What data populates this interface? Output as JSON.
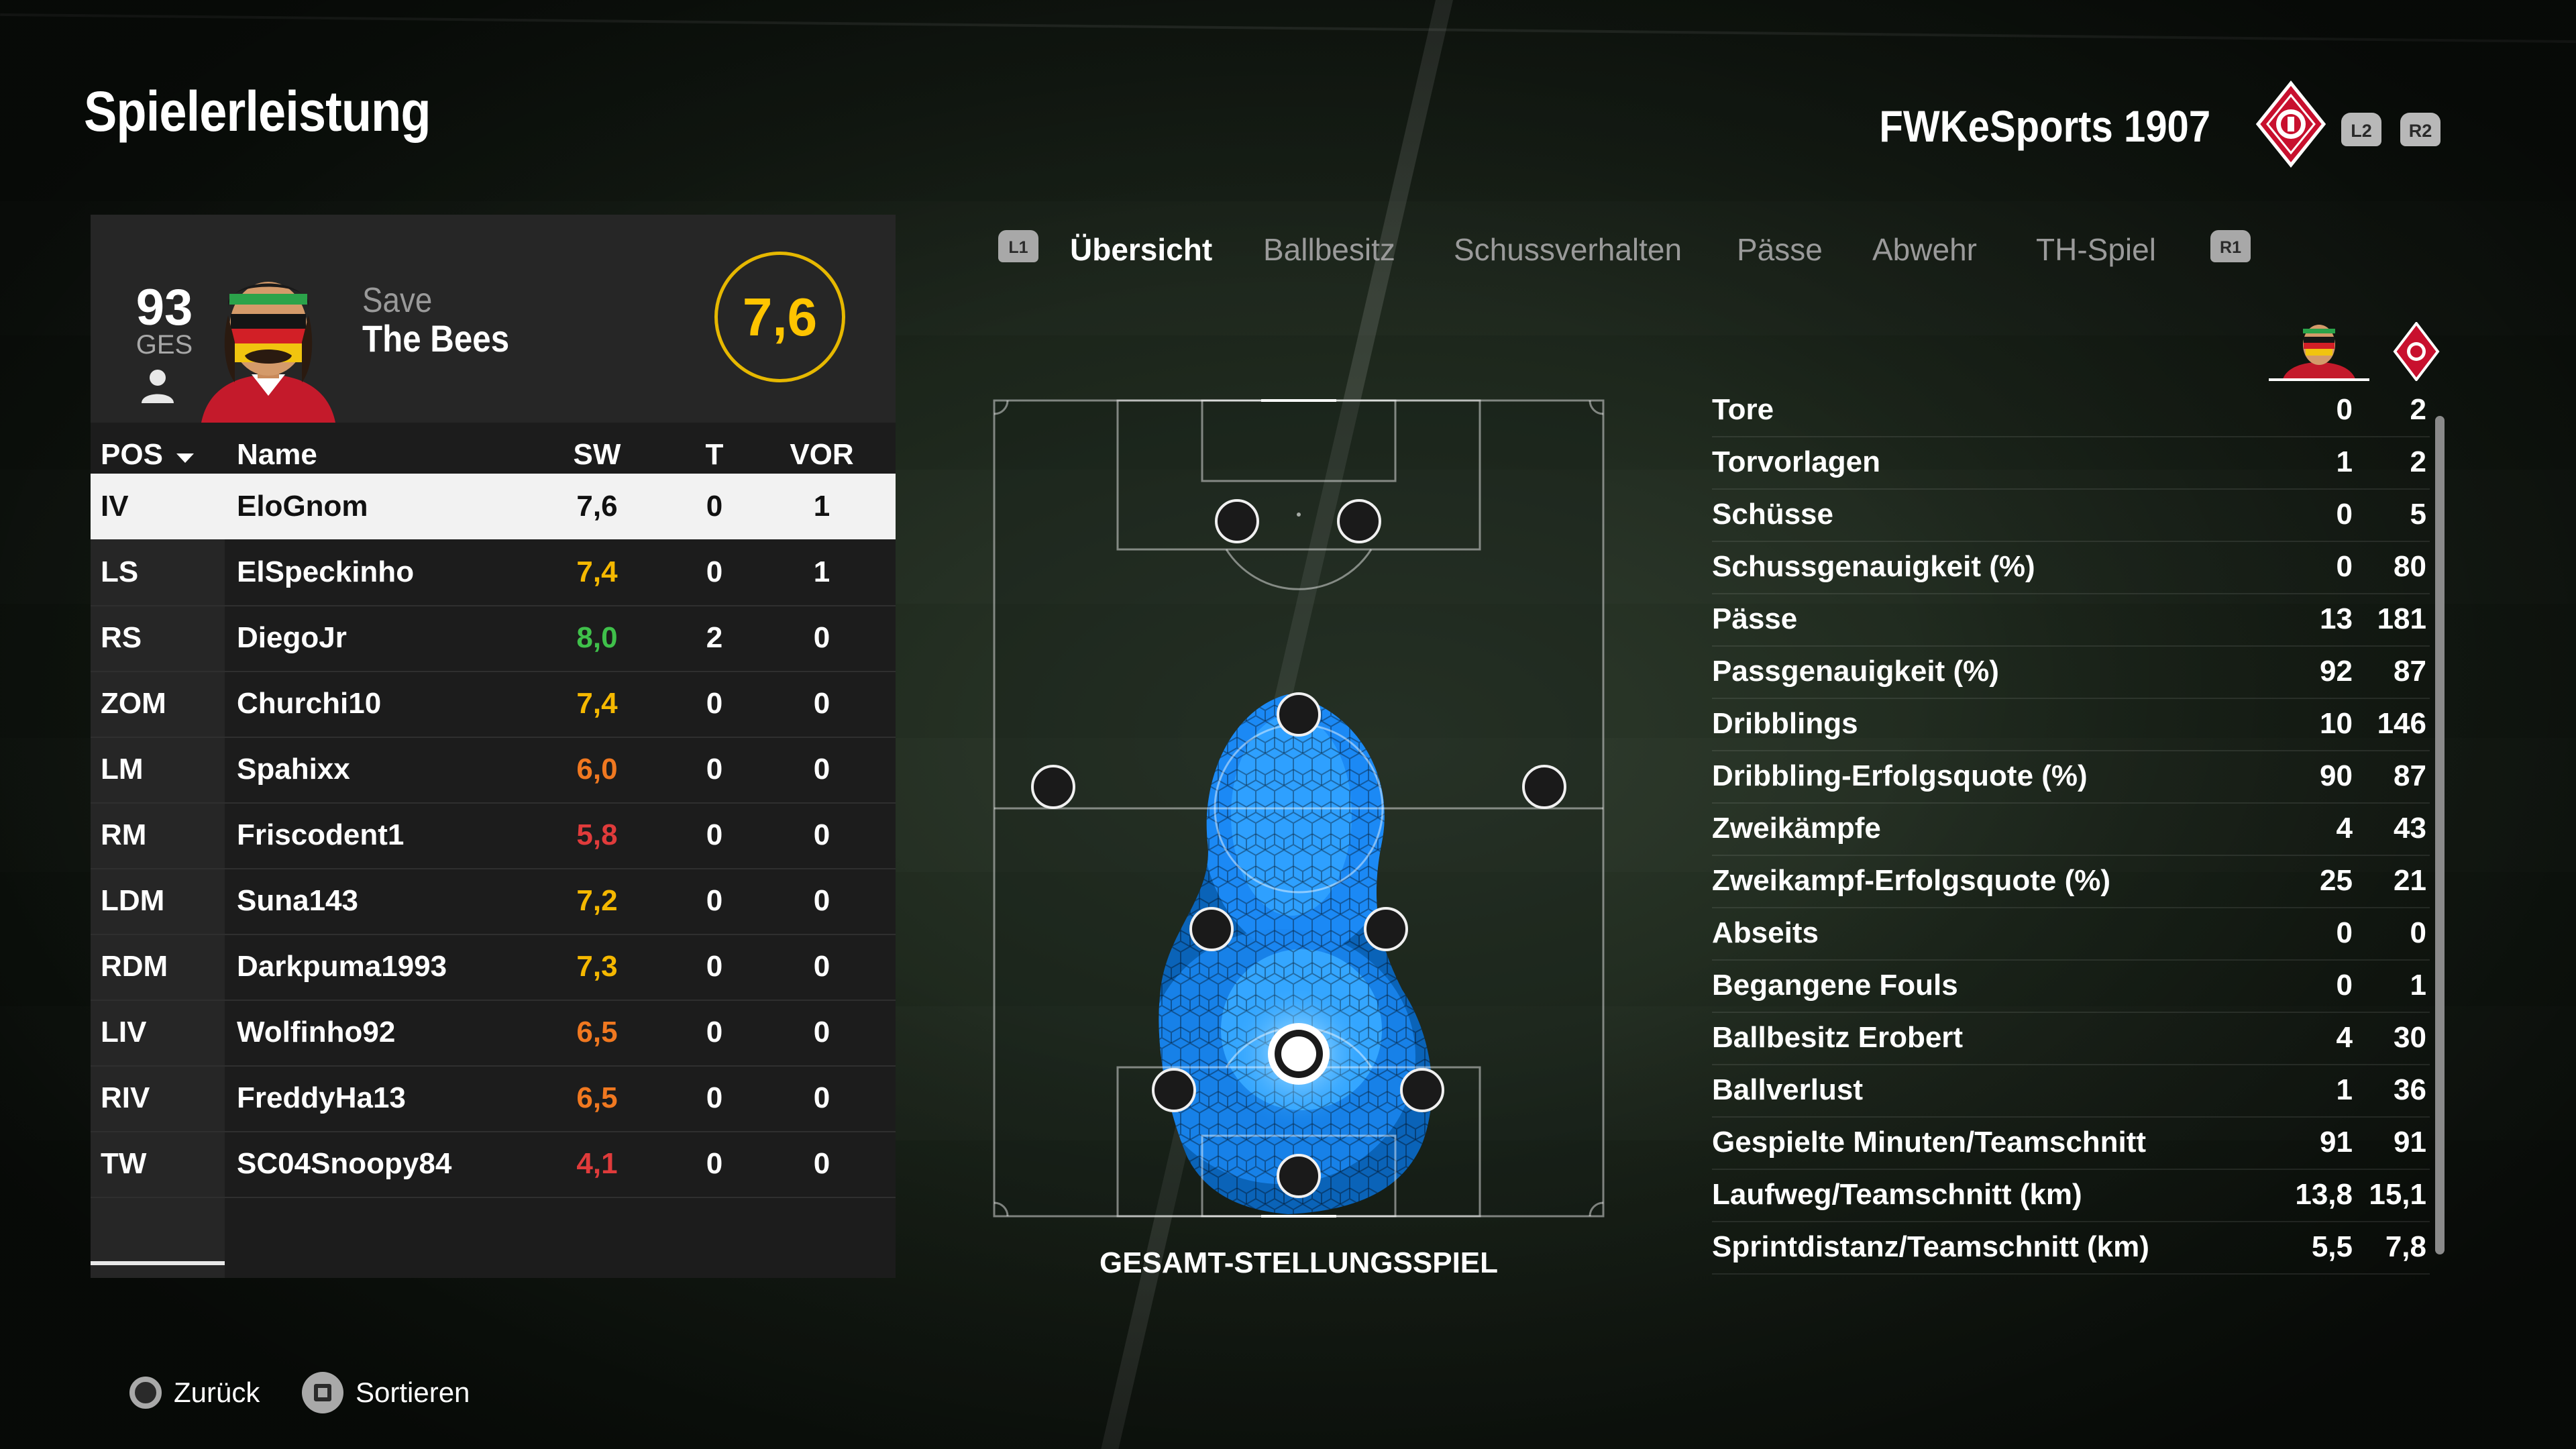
{
  "header": {
    "title": "Spielerleistung",
    "team_name": "FWKeSports 1907",
    "shoulder_left": "L2",
    "shoulder_right": "R2",
    "crest_icon": "club-crest-icon"
  },
  "player_card": {
    "overall": "93",
    "overall_label": "GES",
    "save_label": "Save",
    "save_name": "The Bees",
    "rating": "7,6",
    "rating_color": "#ffc400"
  },
  "table": {
    "columns": [
      "POS",
      "Name",
      "SW",
      "T",
      "VOR"
    ],
    "sort_icon": "sort-desc-icon",
    "rows": [
      {
        "pos": "IV",
        "name": "EloGnom",
        "sw": "7,6",
        "t": "0",
        "vor": "1",
        "color": "#111111"
      },
      {
        "pos": "LS",
        "name": "ElSpeckinho",
        "sw": "7,4",
        "t": "0",
        "vor": "1",
        "color": "#f5b800"
      },
      {
        "pos": "RS",
        "name": "DiegoJr",
        "sw": "8,0",
        "t": "2",
        "vor": "0",
        "color": "#3fc04a"
      },
      {
        "pos": "ZOM",
        "name": "Churchi10",
        "sw": "7,4",
        "t": "0",
        "vor": "0",
        "color": "#f5b800"
      },
      {
        "pos": "LM",
        "name": "Spahixx",
        "sw": "6,0",
        "t": "0",
        "vor": "0",
        "color": "#f07820"
      },
      {
        "pos": "RM",
        "name": "Friscodent1",
        "sw": "5,8",
        "t": "0",
        "vor": "0",
        "color": "#e03b3b"
      },
      {
        "pos": "LDM",
        "name": "Suna143",
        "sw": "7,2",
        "t": "0",
        "vor": "0",
        "color": "#f5b800"
      },
      {
        "pos": "RDM",
        "name": "Darkpuma1993",
        "sw": "7,3",
        "t": "0",
        "vor": "0",
        "color": "#f5b800"
      },
      {
        "pos": "LIV",
        "name": "Wolfinho92",
        "sw": "6,5",
        "t": "0",
        "vor": "0",
        "color": "#f07820"
      },
      {
        "pos": "RIV",
        "name": "FreddyHa13",
        "sw": "6,5",
        "t": "0",
        "vor": "0",
        "color": "#f07820"
      },
      {
        "pos": "TW",
        "name": "SC04Snoopy84",
        "sw": "4,1",
        "t": "0",
        "vor": "0",
        "color": "#e03b3b"
      }
    ]
  },
  "tabs": {
    "left_button": "L1",
    "right_button": "R1",
    "items": [
      "Übersicht",
      "Ballbesitz",
      "Schussverhalten",
      "Pässe",
      "Abwehr",
      "TH-Spiel"
    ],
    "active": "Übersicht"
  },
  "pitch": {
    "label": "GESAMT-STELLUNGSSPIEL"
  },
  "stats": {
    "rows": [
      {
        "label": "Tore",
        "player": "0",
        "team": "2"
      },
      {
        "label": "Torvorlagen",
        "player": "1",
        "team": "2"
      },
      {
        "label": "Schüsse",
        "player": "0",
        "team": "5"
      },
      {
        "label": "Schussgenauigkeit (%)",
        "player": "0",
        "team": "80"
      },
      {
        "label": "Pässe",
        "player": "13",
        "team": "181"
      },
      {
        "label": "Passgenauigkeit (%)",
        "player": "92",
        "team": "87"
      },
      {
        "label": "Dribblings",
        "player": "10",
        "team": "146"
      },
      {
        "label": "Dribbling-Erfolgsquote (%)",
        "player": "90",
        "team": "87"
      },
      {
        "label": "Zweikämpfe",
        "player": "4",
        "team": "43"
      },
      {
        "label": "Zweikampf-Erfolgsquote (%)",
        "player": "25",
        "team": "21"
      },
      {
        "label": "Abseits",
        "player": "0",
        "team": "0"
      },
      {
        "label": "Begangene Fouls",
        "player": "0",
        "team": "1"
      },
      {
        "label": "Ballbesitz Erobert",
        "player": "4",
        "team": "30"
      },
      {
        "label": "Ballverlust",
        "player": "1",
        "team": "36"
      },
      {
        "label": "Gespielte Minuten/Teamschnitt",
        "player": "91",
        "team": "91"
      },
      {
        "label": "Laufweg/Teamschnitt (km)",
        "player": "13,8",
        "team": "15,1"
      },
      {
        "label": "Sprintdistanz/Teamschnitt (km)",
        "player": "5,5",
        "team": "7,8"
      }
    ]
  },
  "footer": {
    "back_label": "Zurück",
    "sort_label": "Sortieren"
  }
}
